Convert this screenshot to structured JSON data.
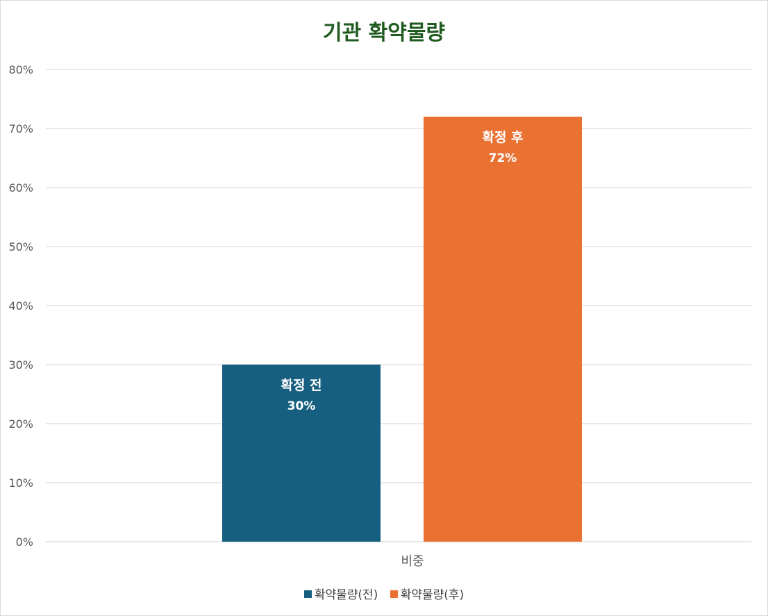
{
  "chart_data": {
    "type": "bar",
    "title": "기관 확약물량",
    "categories": [
      "비중"
    ],
    "ylim": [
      0,
      0.8
    ],
    "yticks": [
      "0%",
      "10%",
      "20%",
      "30%",
      "40%",
      "50%",
      "60%",
      "70%",
      "80%"
    ],
    "grid": true,
    "legend_position": "bottom",
    "series": [
      {
        "name": "확약물량(전)",
        "values": [
          0.3
        ],
        "color": "#175f80",
        "label_title": "확정 전",
        "label_value": "30%"
      },
      {
        "name": "확약물량(후)",
        "values": [
          0.72
        ],
        "color": "#e97132",
        "label_title": "확정 후",
        "label_value": "72%"
      }
    ]
  }
}
